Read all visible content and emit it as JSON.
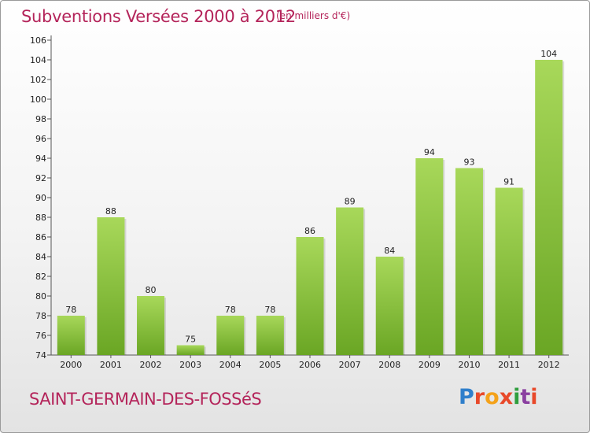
{
  "header": {
    "title": "Subventions Versées 2000 à 2012",
    "unit": "(en milliers d'€)"
  },
  "footer": {
    "commune": "SAINT-GERMAIN-DES-FOSSéS",
    "logo_letters": [
      "P",
      "r",
      "o",
      "x",
      "i",
      "t",
      "i"
    ],
    "logo_colors": [
      "#2f7fcb",
      "#e8492a",
      "#f4a21a",
      "#e8492a",
      "#2f9e3e",
      "#8a3fa0",
      "#e8492a"
    ]
  },
  "colors": {
    "bar_light": "#a8d85a",
    "bar_dark": "#6aa624",
    "axis": "#555555",
    "grid": "#d0d0d0"
  },
  "chart_data": {
    "type": "bar",
    "title": "Subventions Versées 2000 à 2012",
    "categories": [
      "2000",
      "2001",
      "2002",
      "2003",
      "2004",
      "2005",
      "2006",
      "2007",
      "2008",
      "2009",
      "2010",
      "2011",
      "2012"
    ],
    "values": [
      78,
      88,
      80,
      75,
      78,
      78,
      86,
      89,
      84,
      94,
      93,
      91,
      104
    ],
    "ylim": [
      74,
      106
    ],
    "yticks": [
      74,
      76,
      78,
      80,
      82,
      84,
      86,
      88,
      90,
      92,
      94,
      96,
      98,
      100,
      102,
      104,
      106
    ],
    "grid": false,
    "xlabel": "",
    "ylabel": ""
  }
}
